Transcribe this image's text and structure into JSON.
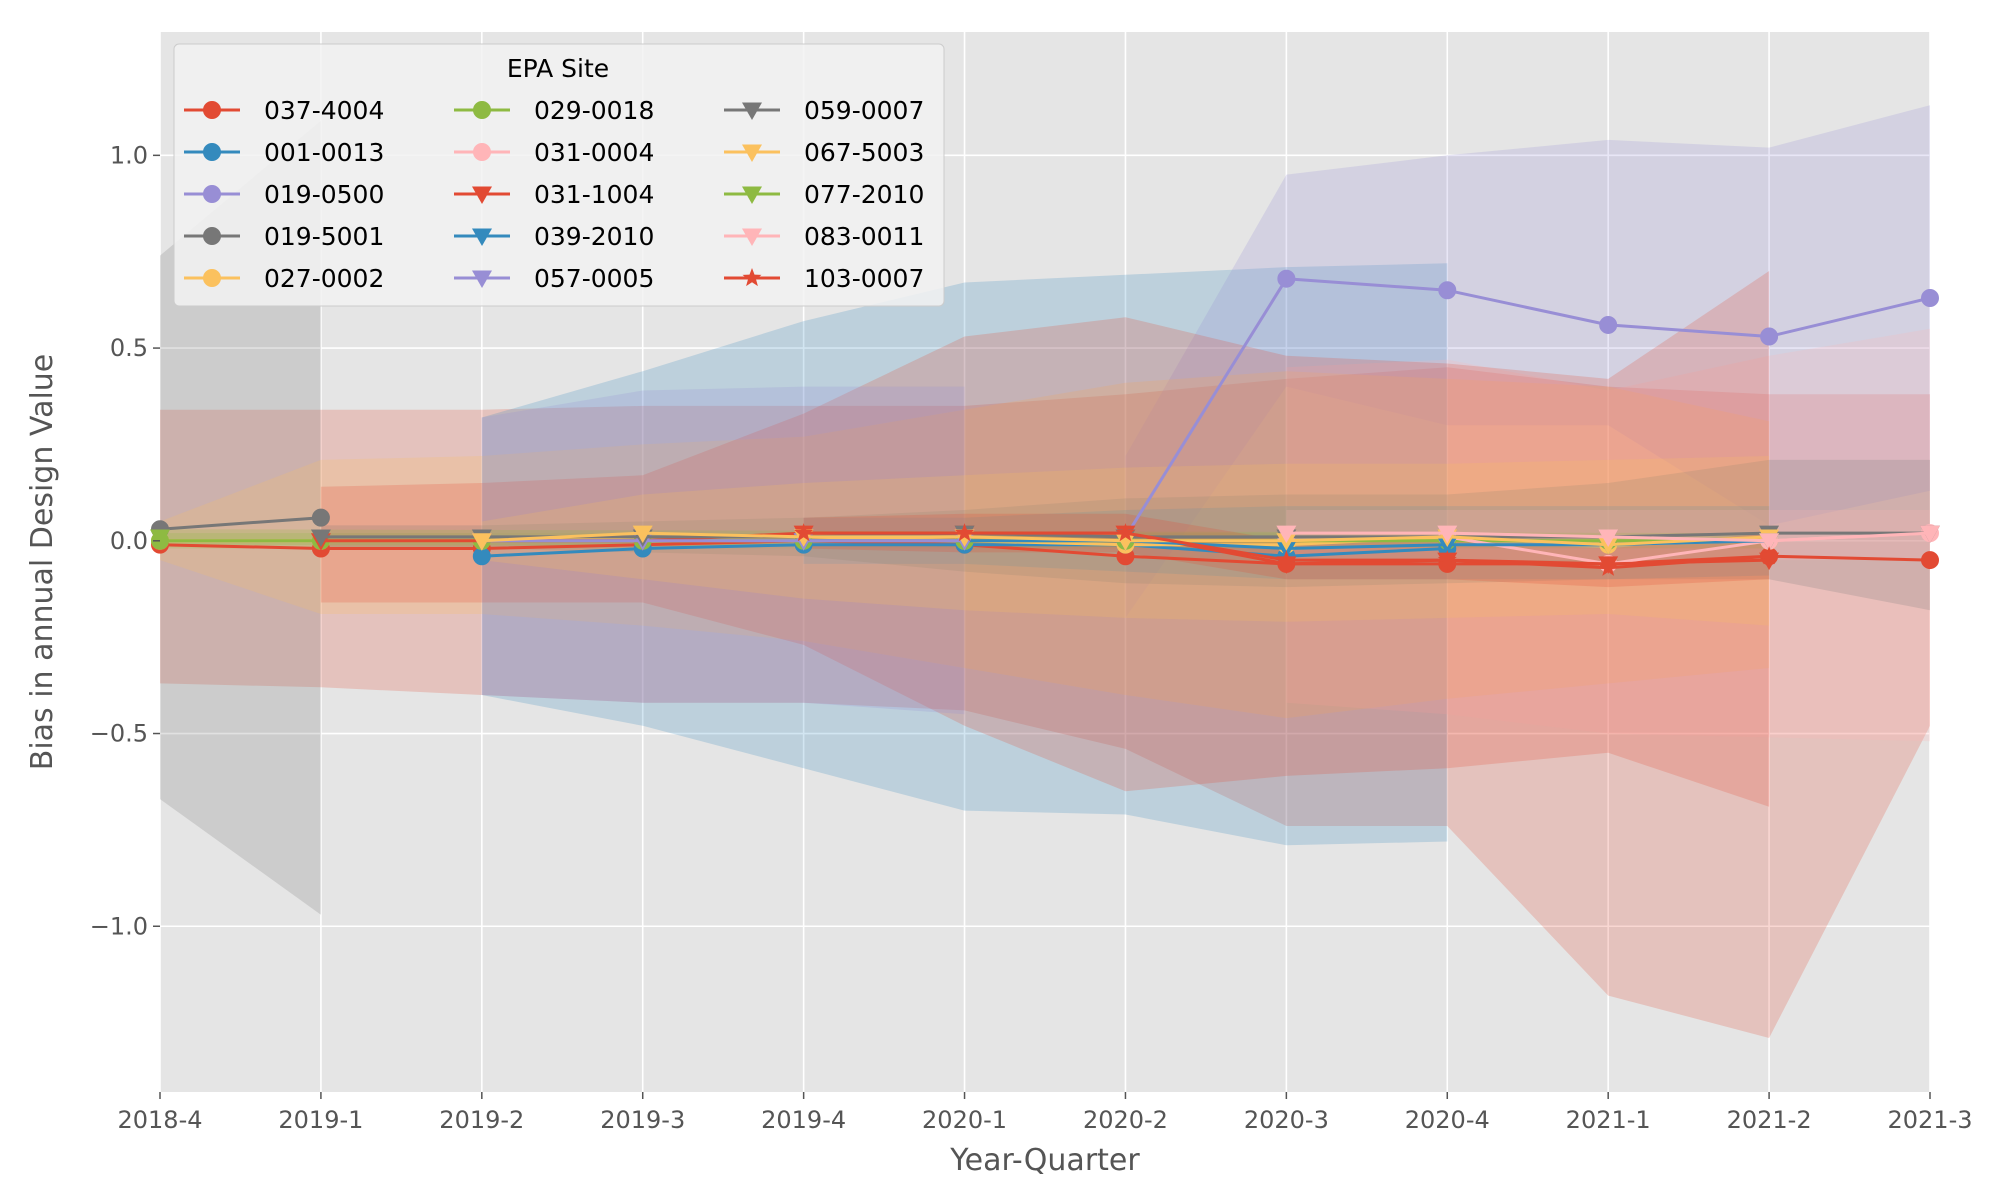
{
  "chart_data": {
    "type": "line",
    "title": "",
    "xlabel": "Year-Quarter",
    "ylabel": "Bias in annual Design Value",
    "categories": [
      "2018-4",
      "2019-1",
      "2019-2",
      "2019-3",
      "2019-4",
      "2020-1",
      "2020-2",
      "2020-3",
      "2020-4",
      "2021-1",
      "2021-2",
      "2021-3"
    ],
    "ylim": [
      -1.43,
      1.32
    ],
    "yticks": [
      -1.0,
      -0.5,
      0.0,
      0.5,
      1.0
    ],
    "ytick_labels": [
      "−1.0",
      "−0.5",
      "0.0",
      "0.5",
      "1.0"
    ],
    "grid": true,
    "legend": {
      "title": "EPA Site",
      "placement": "top-left",
      "columns": 3
    },
    "series": [
      {
        "name": "037-4004",
        "color": "#E24A33",
        "marker": "circle",
        "values": [
          -0.01,
          -0.02,
          -0.02,
          -0.01,
          0.0,
          -0.01,
          -0.04,
          -0.06,
          -0.06,
          -0.06,
          -0.04,
          -0.05
        ],
        "lower": [
          -0.37,
          -0.38,
          -0.4,
          -0.42,
          -0.42,
          -0.44,
          -0.54,
          -0.74,
          -0.74,
          -1.18,
          -1.29,
          -0.48
        ],
        "upper": [
          0.34,
          0.34,
          0.34,
          0.35,
          0.35,
          0.35,
          0.38,
          0.42,
          0.45,
          0.4,
          0.38,
          0.38
        ]
      },
      {
        "name": "001-0013",
        "color": "#348ABD",
        "marker": "circle",
        "values": [
          null,
          null,
          -0.04,
          -0.02,
          -0.01,
          -0.01,
          -0.01,
          -0.04,
          -0.02,
          null,
          null,
          null
        ],
        "lower": [
          null,
          null,
          -0.4,
          -0.48,
          -0.59,
          -0.7,
          -0.71,
          -0.79,
          -0.78,
          null,
          null,
          null
        ],
        "upper": [
          null,
          null,
          0.32,
          0.44,
          0.57,
          0.67,
          0.69,
          0.71,
          0.72,
          null,
          null,
          null
        ]
      },
      {
        "name": "019-0500",
        "color": "#988ED5",
        "marker": "circle",
        "values": [
          null,
          null,
          null,
          null,
          null,
          null,
          0.01,
          0.68,
          0.65,
          0.56,
          0.53,
          0.63
        ],
        "lower": [
          null,
          null,
          null,
          null,
          null,
          null,
          -0.2,
          0.4,
          0.3,
          0.3,
          0.04,
          0.13
        ],
        "upper": [
          null,
          null,
          null,
          null,
          null,
          null,
          0.22,
          0.95,
          1.0,
          1.04,
          1.02,
          1.13
        ]
      },
      {
        "name": "019-5001",
        "color": "#777777",
        "marker": "circle",
        "values": [
          0.03,
          0.06,
          null,
          null,
          null,
          null,
          null,
          null,
          null,
          null,
          null,
          null
        ],
        "lower": [
          -0.67,
          -0.97,
          null,
          null,
          null,
          null,
          null,
          null,
          null,
          null,
          null,
          null
        ],
        "upper": [
          0.74,
          1.09,
          null,
          null,
          null,
          null,
          null,
          null,
          null,
          null,
          null,
          null
        ]
      },
      {
        "name": "027-0002",
        "color": "#FBC15E",
        "marker": "circle",
        "values": [
          0.0,
          0.0,
          0.0,
          0.01,
          0.01,
          0.0,
          -0.01,
          -0.01,
          0.01,
          -0.01,
          0.0,
          null
        ],
        "lower": [
          -0.05,
          -0.19,
          -0.19,
          -0.22,
          -0.26,
          -0.33,
          -0.4,
          -0.46,
          -0.41,
          -0.37,
          -0.33,
          null
        ],
        "upper": [
          0.05,
          0.21,
          0.22,
          0.25,
          0.27,
          0.34,
          0.41,
          0.44,
          0.42,
          0.4,
          0.31,
          null
        ]
      },
      {
        "name": "029-0018",
        "color": "#8EBA42",
        "marker": "circle",
        "values": [
          0.0,
          0.0,
          0.0,
          0.0,
          0.0,
          0.0,
          0.0,
          0.0,
          0.0,
          0.0,
          0.0,
          null
        ],
        "lower": [
          -0.02,
          -0.02,
          -0.02,
          -0.02,
          -0.02,
          -0.02,
          -0.02,
          -0.02,
          -0.02,
          -0.02,
          -0.02,
          null
        ],
        "upper": [
          0.02,
          0.02,
          0.02,
          0.02,
          0.02,
          0.02,
          0.02,
          0.02,
          0.02,
          0.02,
          0.02,
          null
        ]
      },
      {
        "name": "031-0004",
        "color": "#FFB5B8",
        "marker": "circle",
        "values": [
          null,
          null,
          null,
          null,
          null,
          null,
          null,
          0.01,
          0.01,
          -0.06,
          0.0,
          0.02
        ],
        "lower": [
          null,
          null,
          null,
          null,
          null,
          null,
          null,
          -0.42,
          -0.45,
          -0.5,
          -0.51,
          -0.52
        ],
        "upper": [
          null,
          null,
          null,
          null,
          null,
          null,
          null,
          0.45,
          0.47,
          0.39,
          0.48,
          0.55
        ]
      },
      {
        "name": "031-1004",
        "color": "#E24A33",
        "marker": "triangle-down",
        "values": [
          null,
          0.0,
          0.0,
          0.0,
          0.02,
          0.02,
          0.02,
          -0.06,
          -0.05,
          -0.06,
          -0.05,
          null
        ],
        "lower": [
          null,
          -0.16,
          -0.16,
          -0.16,
          -0.27,
          -0.48,
          -0.65,
          -0.61,
          -0.59,
          -0.55,
          -0.69,
          null
        ],
        "upper": [
          null,
          0.14,
          0.15,
          0.17,
          0.33,
          0.53,
          0.58,
          0.48,
          0.46,
          0.42,
          0.7,
          null
        ]
      },
      {
        "name": "039-2010",
        "color": "#348ABD",
        "marker": "triangle-down",
        "values": [
          null,
          null,
          null,
          null,
          0.0,
          0.0,
          0.0,
          -0.02,
          -0.01,
          -0.01,
          0.0,
          null
        ],
        "lower": [
          null,
          null,
          null,
          null,
          -0.06,
          -0.06,
          -0.08,
          -0.1,
          -0.1,
          -0.1,
          -0.09,
          null
        ],
        "upper": [
          null,
          null,
          null,
          null,
          0.06,
          0.06,
          0.08,
          0.09,
          0.09,
          0.09,
          0.09,
          null
        ]
      },
      {
        "name": "057-0005",
        "color": "#988ED5",
        "marker": "triangle-down",
        "values": [
          null,
          null,
          0.0,
          0.0,
          0.0,
          0.0,
          null,
          null,
          null,
          null,
          null,
          null
        ],
        "lower": [
          null,
          null,
          -0.4,
          -0.42,
          -0.42,
          -0.45,
          null,
          null,
          null,
          null,
          null,
          null
        ],
        "upper": [
          null,
          null,
          0.32,
          0.39,
          0.4,
          0.4,
          null,
          null,
          null,
          null,
          null,
          null
        ]
      },
      {
        "name": "059-0007",
        "color": "#777777",
        "marker": "triangle-down",
        "values": [
          null,
          0.01,
          0.01,
          0.01,
          0.01,
          0.02,
          0.01,
          0.01,
          0.01,
          0.01,
          0.02,
          0.02
        ],
        "lower": [
          null,
          -0.02,
          -0.02,
          -0.03,
          -0.04,
          -0.08,
          -0.11,
          -0.12,
          -0.11,
          -0.1,
          -0.1,
          -0.18
        ],
        "upper": [
          null,
          0.04,
          0.04,
          0.05,
          0.06,
          0.08,
          0.11,
          0.12,
          0.12,
          0.15,
          0.21,
          0.21
        ]
      },
      {
        "name": "067-5003",
        "color": "#FBC15E",
        "marker": "triangle-down",
        "values": [
          null,
          null,
          0.0,
          0.02,
          0.01,
          0.01,
          0.0,
          0.0,
          0.01,
          -0.01,
          0.01,
          null
        ],
        "lower": [
          null,
          null,
          -0.05,
          -0.1,
          -0.15,
          -0.18,
          -0.2,
          -0.21,
          -0.2,
          -0.19,
          -0.22,
          null
        ],
        "upper": [
          null,
          null,
          0.05,
          0.12,
          0.15,
          0.17,
          0.19,
          0.2,
          0.2,
          0.21,
          0.22,
          null
        ]
      },
      {
        "name": "077-2010",
        "color": "#8EBA42",
        "marker": "triangle-down",
        "values": [
          0.01,
          null,
          null,
          null,
          null,
          null,
          null,
          null,
          null,
          null,
          0.0,
          null
        ],
        "lower": [
          -0.01,
          null,
          null,
          null,
          null,
          null,
          null,
          null,
          null,
          null,
          -0.02,
          null
        ],
        "upper": [
          0.03,
          null,
          null,
          null,
          null,
          null,
          null,
          null,
          null,
          null,
          0.02,
          null
        ]
      },
      {
        "name": "083-0011",
        "color": "#FFB5B8",
        "marker": "triangle-down",
        "values": [
          null,
          null,
          null,
          null,
          null,
          null,
          null,
          0.02,
          0.02,
          0.01,
          0.0,
          0.02
        ],
        "lower": [
          null,
          null,
          null,
          null,
          null,
          null,
          null,
          -0.05,
          -0.05,
          -0.05,
          -0.05,
          -0.05
        ],
        "upper": [
          null,
          null,
          null,
          null,
          null,
          null,
          null,
          0.08,
          0.08,
          0.08,
          0.08,
          0.08
        ]
      },
      {
        "name": "103-0007",
        "color": "#E24A33",
        "marker": "star",
        "values": [
          null,
          null,
          null,
          null,
          0.02,
          0.02,
          0.02,
          -0.05,
          -0.05,
          -0.07,
          -0.04,
          null
        ],
        "lower": [
          null,
          null,
          null,
          null,
          -0.02,
          -0.03,
          -0.03,
          -0.1,
          -0.1,
          -0.12,
          -0.1,
          null
        ],
        "upper": [
          null,
          null,
          null,
          null,
          0.06,
          0.07,
          0.07,
          0.0,
          0.0,
          -0.02,
          0.02,
          null
        ]
      }
    ]
  }
}
